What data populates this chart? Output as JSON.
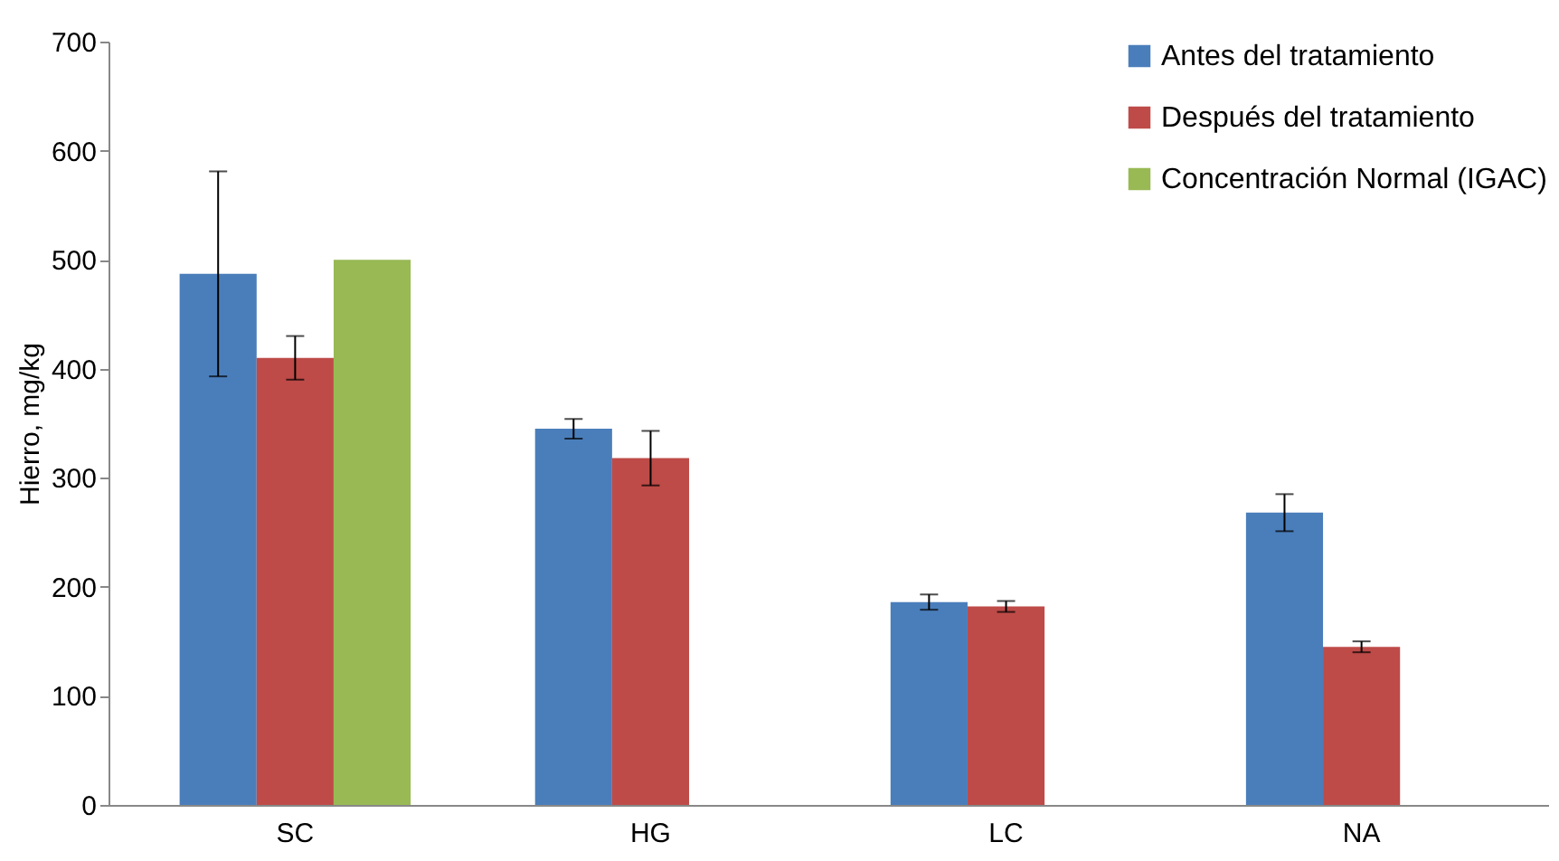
{
  "chart_data": {
    "type": "bar",
    "ylabel": "Hierro, mg/kg",
    "categories": [
      "SC",
      "HG",
      "LC",
      "NA"
    ],
    "series": [
      {
        "name": "Antes del tratamiento",
        "color": "#4a7ebb",
        "values": [
          487,
          345,
          186,
          268
        ],
        "errors": [
          94,
          9,
          7,
          17
        ]
      },
      {
        "name": "Después del tratamiento",
        "color": "#be4b48",
        "values": [
          410,
          318,
          182,
          145
        ],
        "errors": [
          20,
          25,
          5,
          5
        ]
      },
      {
        "name": "Concentración Normal (IGAC)",
        "color": "#98b954",
        "values": [
          500,
          null,
          null,
          null
        ]
      }
    ],
    "ylim": [
      0,
      700
    ],
    "yticks": [
      0,
      100,
      200,
      300,
      400,
      500,
      600,
      700
    ],
    "grid": false,
    "legend": "top right"
  }
}
